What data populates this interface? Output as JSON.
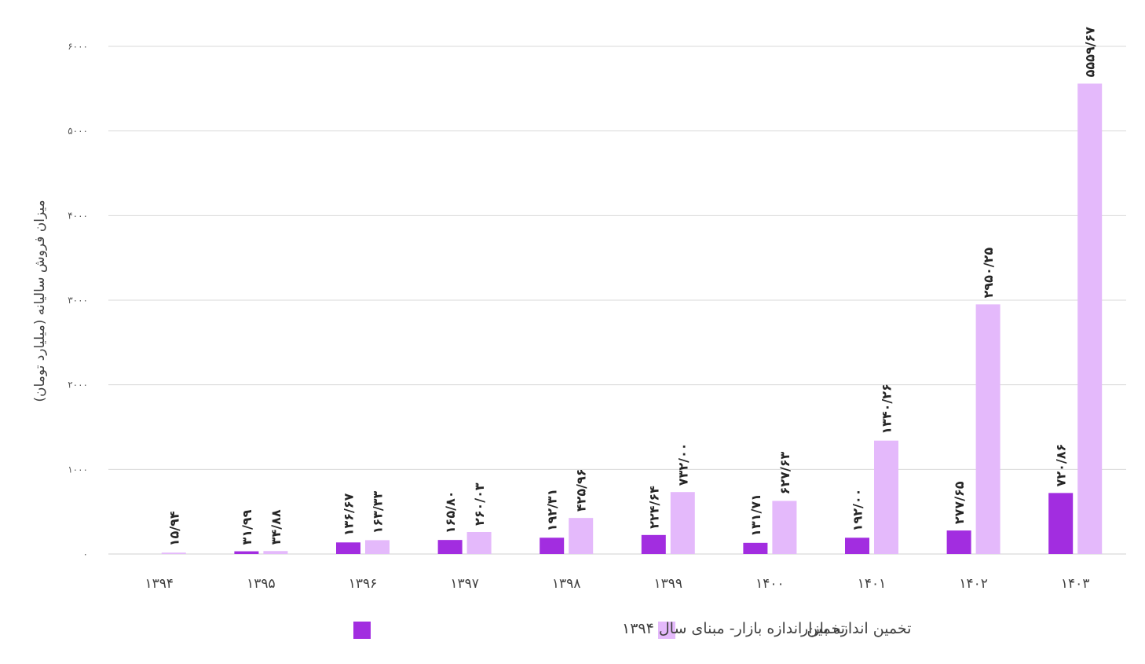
{
  "chart_data": {
    "type": "bar",
    "title": "",
    "xlabel": "",
    "ylabel": "میزان فروش سالیانه (میلیارد تومان)",
    "ylim": [
      0,
      6000
    ],
    "yticks": [
      {
        "value": 0,
        "label": "۰"
      },
      {
        "value": 1000,
        "label": "۱۰۰۰"
      },
      {
        "value": 2000,
        "label": "۲۰۰۰"
      },
      {
        "value": 3000,
        "label": "۳۰۰۰"
      },
      {
        "value": 4000,
        "label": "۴۰۰۰"
      },
      {
        "value": 5000,
        "label": "۵۰۰۰"
      },
      {
        "value": 6000,
        "label": "۶۰۰۰"
      }
    ],
    "grid": true,
    "legend_position": "bottom",
    "categories": [
      "۱۳۹۴",
      "۱۳۹۵",
      "۱۳۹۶",
      "۱۳۹۷",
      "۱۳۹۸",
      "۱۳۹۹",
      "۱۴۰۰",
      "۱۴۰۱",
      "۱۴۰۲",
      "۱۴۰۳"
    ],
    "series": [
      {
        "name": "تخمین اندازه بازار- مبنای سال ۱۳۹۴",
        "color": "#a22de0",
        "values": [
          0,
          31.99,
          136.67,
          165.8,
          192.31,
          224.64,
          131.71,
          192.0,
          277.65,
          720.86
        ],
        "labels": [
          "",
          "۳۱/۹۹",
          "۱۳۶/۶۷",
          "۱۶۵/۸۰",
          "۱۹۲/۳۱",
          "۲۲۴/۶۴",
          "۱۳۱/۷۱",
          "۱۹۲/۰۰",
          "۲۷۷/۶۵",
          "۷۲۰/۸۶"
        ]
      },
      {
        "name": "تخمین اندازه بازار",
        "color": "#e4b9fb",
        "values": [
          15.94,
          34.88,
          163.33,
          260.03,
          425.96,
          732.0,
          627.63,
          1340.26,
          2950.25,
          5559.67
        ],
        "labels": [
          "۱۵/۹۴",
          "۳۴/۸۸",
          "۱۶۳/۳۳",
          "۲۶۰/۰۳",
          "۴۲۵/۹۶",
          "۷۳۲/۰۰",
          "۶۲۷/۶۳",
          "۱۳۴۰/۲۶",
          "۲۹۵۰/۲۵",
          "۵۵۵۹/۶۷"
        ]
      }
    ]
  }
}
